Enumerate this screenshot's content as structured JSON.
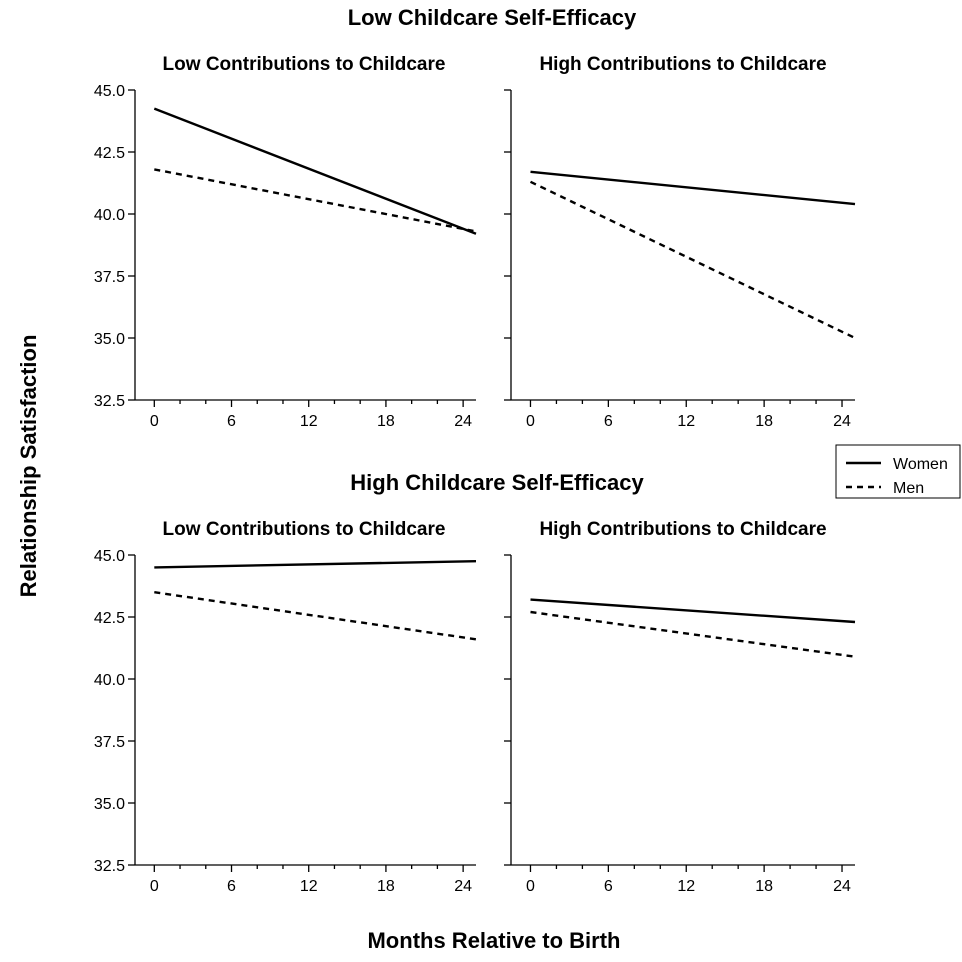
{
  "figure": {
    "xlabel": "Months Relative to Birth",
    "ylabel": "Relationship Satisfaction"
  },
  "legend": [
    {
      "name": "Women",
      "style": "solid"
    },
    {
      "name": "Men",
      "style": "dashed"
    }
  ],
  "row_titles": [
    "Low Childcare Self-Efficacy",
    "High Childcare Self-Efficacy"
  ],
  "chart_data": [
    {
      "type": "line",
      "row": "Low Childcare Self-Efficacy",
      "title": "Low Contributions to Childcare",
      "xlim": [
        -1.5,
        25
      ],
      "ylim": [
        32.5,
        45.0
      ],
      "xticks": [
        0,
        6,
        12,
        18,
        24
      ],
      "yticks": [
        "32.5",
        "35.0",
        "37.5",
        "40.0",
        "42.5",
        "45.0"
      ],
      "show_y_tick_labels": true,
      "series": [
        {
          "name": "Women",
          "style": "solid",
          "x": [
            0,
            25
          ],
          "y": [
            44.25,
            39.2
          ]
        },
        {
          "name": "Men",
          "style": "dashed",
          "x": [
            0,
            25
          ],
          "y": [
            41.8,
            39.3
          ]
        }
      ]
    },
    {
      "type": "line",
      "row": "Low Childcare Self-Efficacy",
      "title": "High Contributions to Childcare",
      "xlim": [
        -1.5,
        25
      ],
      "ylim": [
        32.5,
        45.0
      ],
      "xticks": [
        0,
        6,
        12,
        18,
        24
      ],
      "yticks": [
        "32.5",
        "35.0",
        "37.5",
        "40.0",
        "42.5",
        "45.0"
      ],
      "show_y_tick_labels": false,
      "series": [
        {
          "name": "Women",
          "style": "solid",
          "x": [
            0,
            25
          ],
          "y": [
            41.7,
            40.4
          ]
        },
        {
          "name": "Men",
          "style": "dashed",
          "x": [
            0,
            25
          ],
          "y": [
            41.3,
            35.0
          ]
        }
      ]
    },
    {
      "type": "line",
      "row": "High Childcare Self-Efficacy",
      "title": "Low Contributions to Childcare",
      "xlim": [
        -1.5,
        25
      ],
      "ylim": [
        32.5,
        45.0
      ],
      "xticks": [
        0,
        6,
        12,
        18,
        24
      ],
      "yticks": [
        "32.5",
        "35.0",
        "37.5",
        "40.0",
        "42.5",
        "45.0"
      ],
      "show_y_tick_labels": true,
      "series": [
        {
          "name": "Women",
          "style": "solid",
          "x": [
            0,
            25
          ],
          "y": [
            44.5,
            44.75
          ]
        },
        {
          "name": "Men",
          "style": "dashed",
          "x": [
            0,
            25
          ],
          "y": [
            43.5,
            41.6
          ]
        }
      ]
    },
    {
      "type": "line",
      "row": "High Childcare Self-Efficacy",
      "title": "High Contributions to Childcare",
      "xlim": [
        -1.5,
        25
      ],
      "ylim": [
        32.5,
        45.0
      ],
      "xticks": [
        0,
        6,
        12,
        18,
        24
      ],
      "yticks": [
        "32.5",
        "35.0",
        "37.5",
        "40.0",
        "42.5",
        "45.0"
      ],
      "show_y_tick_labels": false,
      "series": [
        {
          "name": "Women",
          "style": "solid",
          "x": [
            0,
            25
          ],
          "y": [
            43.2,
            42.3
          ]
        },
        {
          "name": "Men",
          "style": "dashed",
          "x": [
            0,
            25
          ],
          "y": [
            42.7,
            40.9
          ]
        }
      ]
    }
  ]
}
